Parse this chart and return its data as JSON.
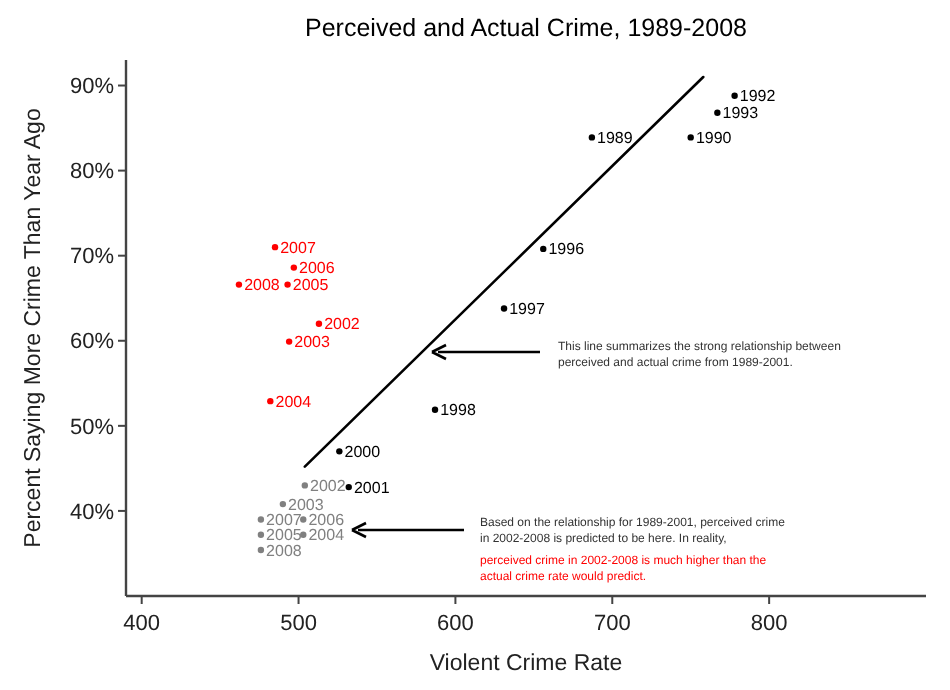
{
  "chart_data": {
    "type": "scatter",
    "title": "Perceived and Actual Crime, 1989-2008",
    "xlabel": "Violent Crime Rate",
    "ylabel": "Percent Saying More Crime Than Year Ago",
    "xlim": [
      390,
      900
    ],
    "xticks": [
      400,
      500,
      600,
      700,
      800
    ],
    "ylim": [
      30,
      93
    ],
    "yticks": [
      {
        "value": 40,
        "label": "40%"
      },
      {
        "value": 50,
        "label": "50%"
      },
      {
        "value": 60,
        "label": "60%"
      },
      {
        "value": 70,
        "label": "70%"
      },
      {
        "value": 80,
        "label": "80%"
      },
      {
        "value": 90,
        "label": "90%"
      }
    ],
    "grid": false,
    "series": [
      {
        "marker": "circle",
        "color": "#000000",
        "x": [
          778,
          767,
          750,
          687,
          656,
          631,
          587,
          526,
          532
        ],
        "values": [
          88.8,
          86.8,
          83.9,
          83.9,
          70.8,
          63.8,
          51.9,
          47.0,
          42.8
        ]
      },
      {
        "marker": "circle",
        "color": "#ff0000",
        "x": [
          485,
          497,
          493,
          462,
          513,
          494,
          482
        ],
        "values": [
          71.0,
          68.6,
          66.6,
          66.6,
          62.0,
          59.9,
          52.9
        ]
      },
      {
        "marker": "circle",
        "color": "#808080",
        "x": [
          504,
          490,
          476,
          503,
          476,
          503,
          476
        ],
        "values": [
          43.0,
          40.8,
          39.0,
          39.0,
          37.2,
          37.2,
          35.4
        ]
      },
      {
        "type": "line",
        "color": "#000000",
        "line_style": "solid",
        "x": [
          504,
          758
        ],
        "values": [
          45.2,
          91
        ]
      }
    ],
    "annotations": [
      "This line summarizes the strong relationship between perceived and actual crime from 1989-2001.",
      "Based on the relationship for 1989-2001, perceived crime in 2002-2008 is predicted to be here. In reality,",
      "perceived crime in 2002-2008 is much higher than the actual crime rate would predict.",
      {
        "text": "1992",
        "x": 778,
        "y": 88.8
      },
      {
        "text": "1993",
        "x": 767,
        "y": 86.8
      },
      {
        "text": "1990",
        "x": 750,
        "y": 83.9
      },
      {
        "text": "1989",
        "x": 687,
        "y": 83.9
      },
      {
        "text": "1996",
        "x": 656,
        "y": 70.8
      },
      {
        "text": "1997",
        "x": 631,
        "y": 63.8
      },
      {
        "text": "1998",
        "x": 587,
        "y": 51.9
      },
      {
        "text": "2000",
        "x": 526,
        "y": 47.0
      },
      {
        "text": "2001",
        "x": 532,
        "y": 42.8
      },
      {
        "text": "2007",
        "x": 485,
        "y": 71.0
      },
      {
        "text": "2006",
        "x": 497,
        "y": 68.6
      },
      {
        "text": "2005",
        "x": 493,
        "y": 66.6
      },
      {
        "text": "2008",
        "x": 462,
        "y": 66.6
      },
      {
        "text": "2002",
        "x": 513,
        "y": 62.0
      },
      {
        "text": "2003",
        "x": 494,
        "y": 59.9
      },
      {
        "text": "2004",
        "x": 482,
        "y": 52.9
      },
      {
        "text": "2002",
        "x": 504,
        "y": 43.0
      },
      {
        "text": "2003",
        "x": 490,
        "y": 40.8
      },
      {
        "text": "2007",
        "x": 476,
        "y": 39.0
      },
      {
        "text": "2006",
        "x": 503,
        "y": 39.0
      },
      {
        "text": "2005",
        "x": 476,
        "y": 37.2
      },
      {
        "text": "2004",
        "x": 503,
        "y": 37.2
      },
      {
        "text": "2008",
        "x": 476,
        "y": 35.4
      }
    ]
  }
}
